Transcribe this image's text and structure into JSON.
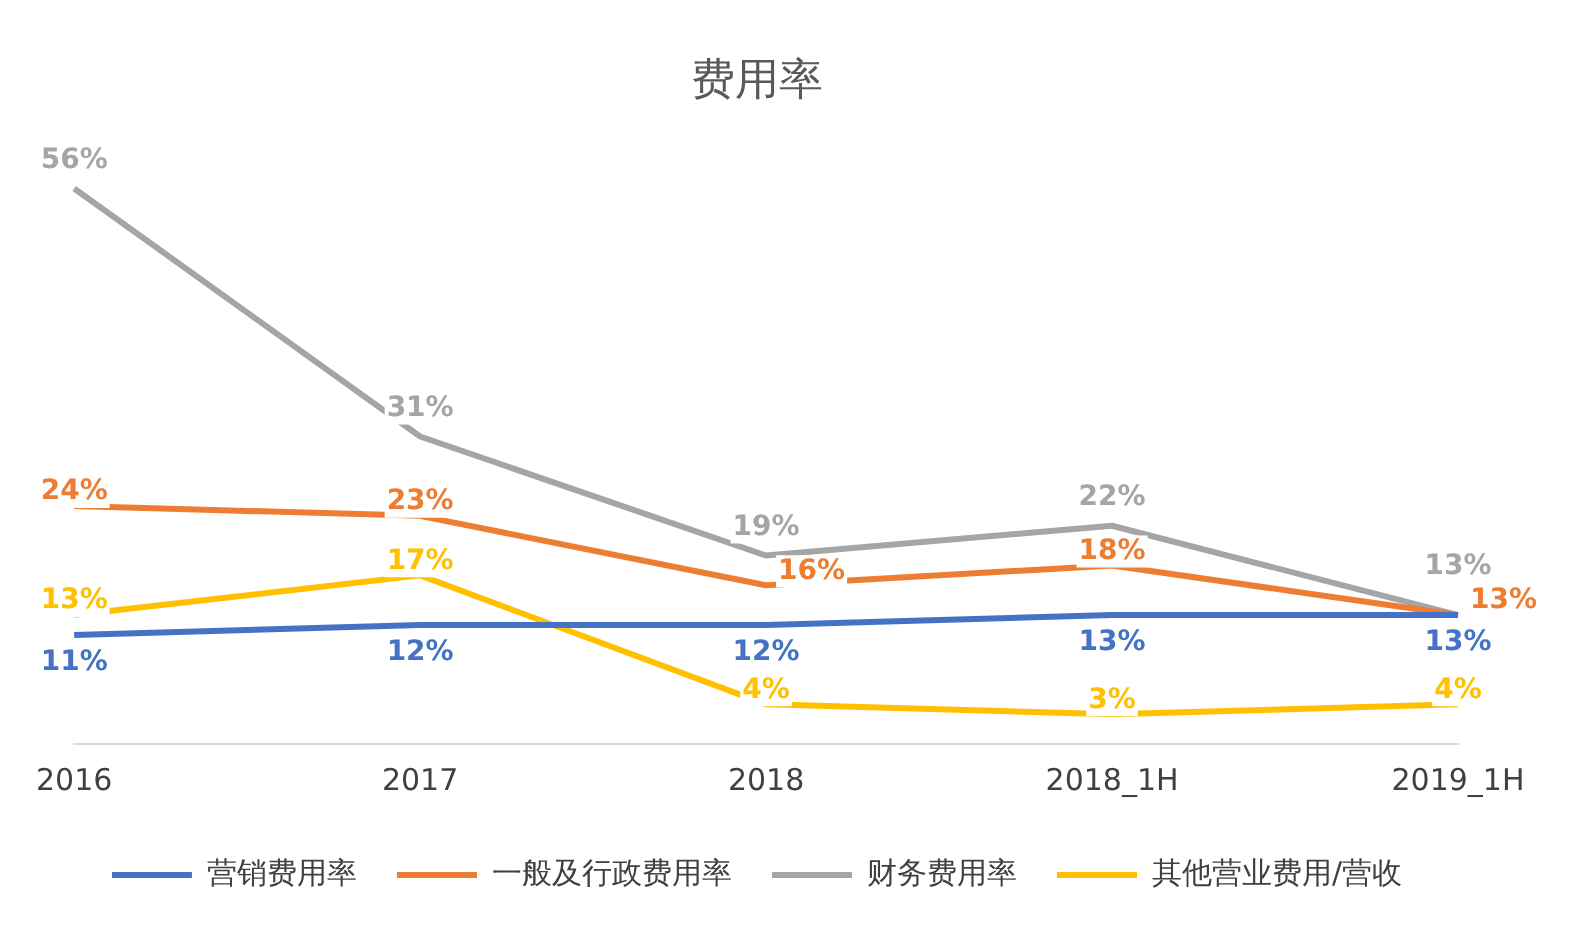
{
  "chart_data": {
    "type": "line",
    "title": "费用率",
    "categories": [
      "2016",
      "2017",
      "2018",
      "2018_1H",
      "2019_1H"
    ],
    "series": [
      {
        "name": "营销费用率",
        "color": "#4472c4",
        "values": [
          11,
          12,
          12,
          13,
          13
        ],
        "value_labels": [
          "11%",
          "12%",
          "12%",
          "13%",
          "13%"
        ]
      },
      {
        "name": "一般及行政费用率",
        "color": "#ed7d31",
        "values": [
          24,
          23,
          16,
          18,
          13
        ],
        "value_labels": [
          "24%",
          "23%",
          "16%",
          "18%",
          "13%"
        ]
      },
      {
        "name": "财务费用率",
        "color": "#a5a5a5",
        "values": [
          56,
          31,
          19,
          22,
          13
        ],
        "value_labels": [
          "56%",
          "31%",
          "19%",
          "22%",
          "13%"
        ]
      },
      {
        "name": "其他营业费用/营收",
        "color": "#ffc000",
        "values": [
          13,
          17,
          4,
          3,
          4
        ],
        "value_labels": [
          "13%",
          "17%",
          "4%",
          "3%",
          "4%"
        ]
      }
    ],
    "legend": "bottom",
    "grid": false,
    "marker": "none"
  }
}
